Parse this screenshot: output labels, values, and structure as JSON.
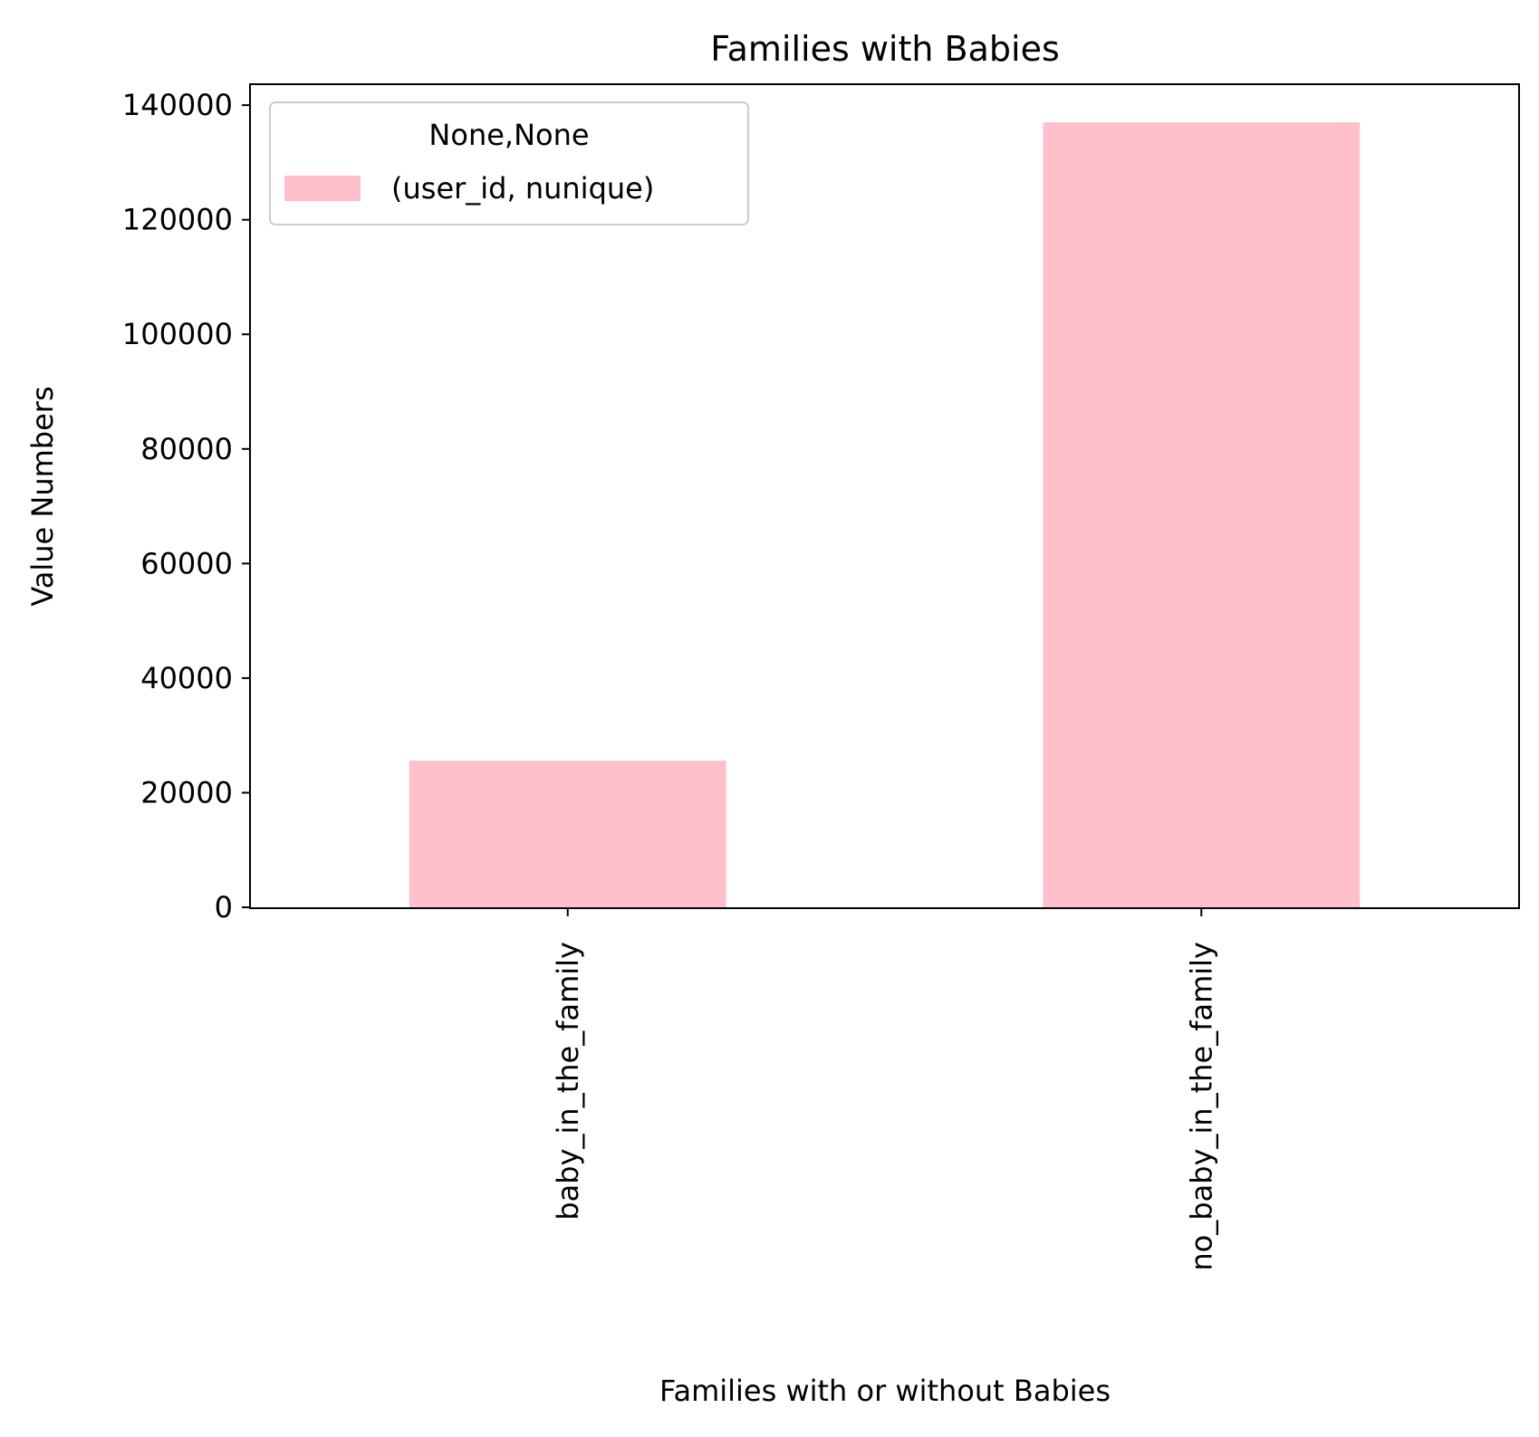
{
  "chart_data": {
    "type": "bar",
    "title": "Families with Babies",
    "xlabel": "Families with or without Babies",
    "ylabel": "Value Numbers",
    "categories": [
      "baby_in_the_family",
      "no_baby_in_the_family"
    ],
    "series": [
      {
        "name": "(user_id, nunique)",
        "values": [
          25600,
          137000
        ]
      }
    ],
    "ylim": [
      0,
      143500
    ],
    "yticks": [
      0,
      20000,
      40000,
      60000,
      80000,
      100000,
      120000,
      140000
    ],
    "ytick_labels": [
      "0",
      "20000",
      "40000",
      "60000",
      "80000",
      "100000",
      "120000",
      "140000"
    ],
    "grid": false,
    "legend": {
      "title": "None,None",
      "placement": "top-left"
    },
    "colors": {
      "bar": "#ffc0cb",
      "axis": "#000000",
      "legend_border": "#cccccc"
    }
  }
}
